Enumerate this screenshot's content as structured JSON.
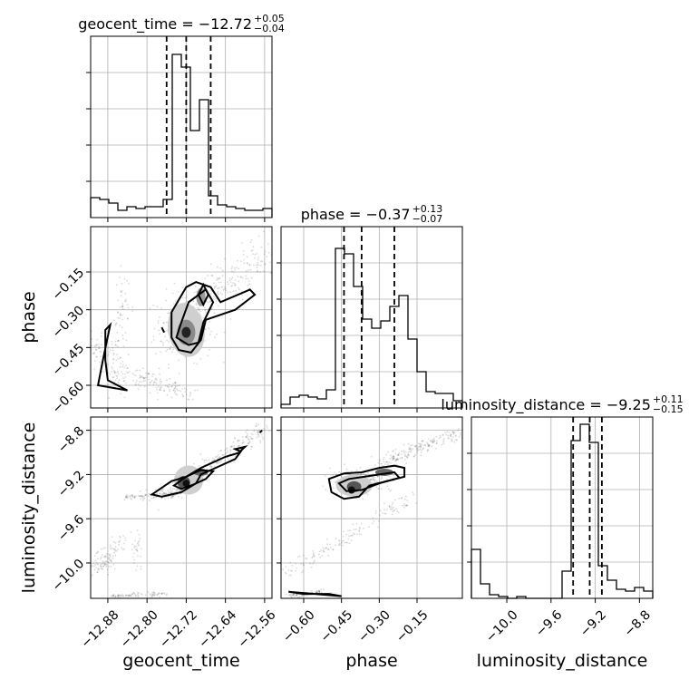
{
  "chart_data": {
    "type": "corner",
    "parameters": [
      "geocent_time",
      "phase",
      "luminosity_distance"
    ],
    "axis_labels": {
      "x": [
        "geocent_time",
        "phase",
        "luminosity_distance"
      ],
      "y": [
        "phase",
        "luminosity_distance"
      ]
    },
    "ranges": {
      "geocent_time": [
        -12.915,
        -12.545
      ],
      "phase": [
        -0.69,
        0.03
      ],
      "luminosity_distance": [
        -10.32,
        -8.68
      ]
    },
    "ticks": {
      "geocent_time": {
        "values": [
          -12.88,
          -12.8,
          -12.72,
          -12.64,
          -12.56
        ],
        "labels": [
          "−12.88",
          "−12.80",
          "−12.72",
          "−12.64",
          "−12.56"
        ]
      },
      "phase": {
        "values": [
          -0.6,
          -0.45,
          -0.3,
          -0.15
        ],
        "labels": [
          "−0.60",
          "−0.45",
          "−0.30",
          "−0.15"
        ]
      },
      "luminosity_distance": {
        "values": [
          -10.0,
          -9.6,
          -9.2,
          -8.8
        ],
        "labels": [
          "−10.0",
          "−9.6",
          "−9.2",
          "−8.8"
        ]
      }
    },
    "titles": [
      {
        "param": "geocent_time",
        "main": "geocent_time = −12.72",
        "sup": "+0.05",
        "sub": "−0.04"
      },
      {
        "param": "phase",
        "main": "phase = −0.37",
        "sup": "+0.13",
        "sub": "−0.07"
      },
      {
        "param": "luminosity_distance",
        "main": "luminosity_distance = −9.25",
        "sup": "+0.11",
        "sub": "−0.15"
      }
    ],
    "quantiles": {
      "geocent_time": [
        -12.76,
        -12.72,
        -12.67
      ],
      "phase": [
        -0.44,
        -0.37,
        -0.24
      ],
      "luminosity_distance": [
        -9.4,
        -9.25,
        -9.14
      ]
    },
    "histograms": {
      "geocent_time": [
        0.11,
        0.1,
        0.08,
        0.04,
        0.06,
        0.05,
        0.06,
        0.06,
        0.1,
        0.9,
        0.83,
        0.48,
        0.65,
        0.12,
        0.07,
        0.06,
        0.05,
        0.04,
        0.04,
        0.05
      ],
      "phase": [
        0.02,
        0.06,
        0.07,
        0.06,
        0.05,
        0.1,
        0.88,
        0.85,
        0.67,
        0.49,
        0.44,
        0.48,
        0.56,
        0.62,
        0.38,
        0.2,
        0.09,
        0.08,
        0.08,
        0.04
      ],
      "luminosity_distance": [
        0.27,
        0.08,
        0.02,
        0.01,
        0.0,
        0.01,
        0.0,
        0.0,
        0.0,
        0.0,
        0.15,
        0.87,
        0.96,
        0.86,
        0.18,
        0.1,
        0.05,
        0.04,
        0.06,
        0.04
      ]
    },
    "hist_ylim": [
      0,
      1.0
    ],
    "grid": true
  }
}
